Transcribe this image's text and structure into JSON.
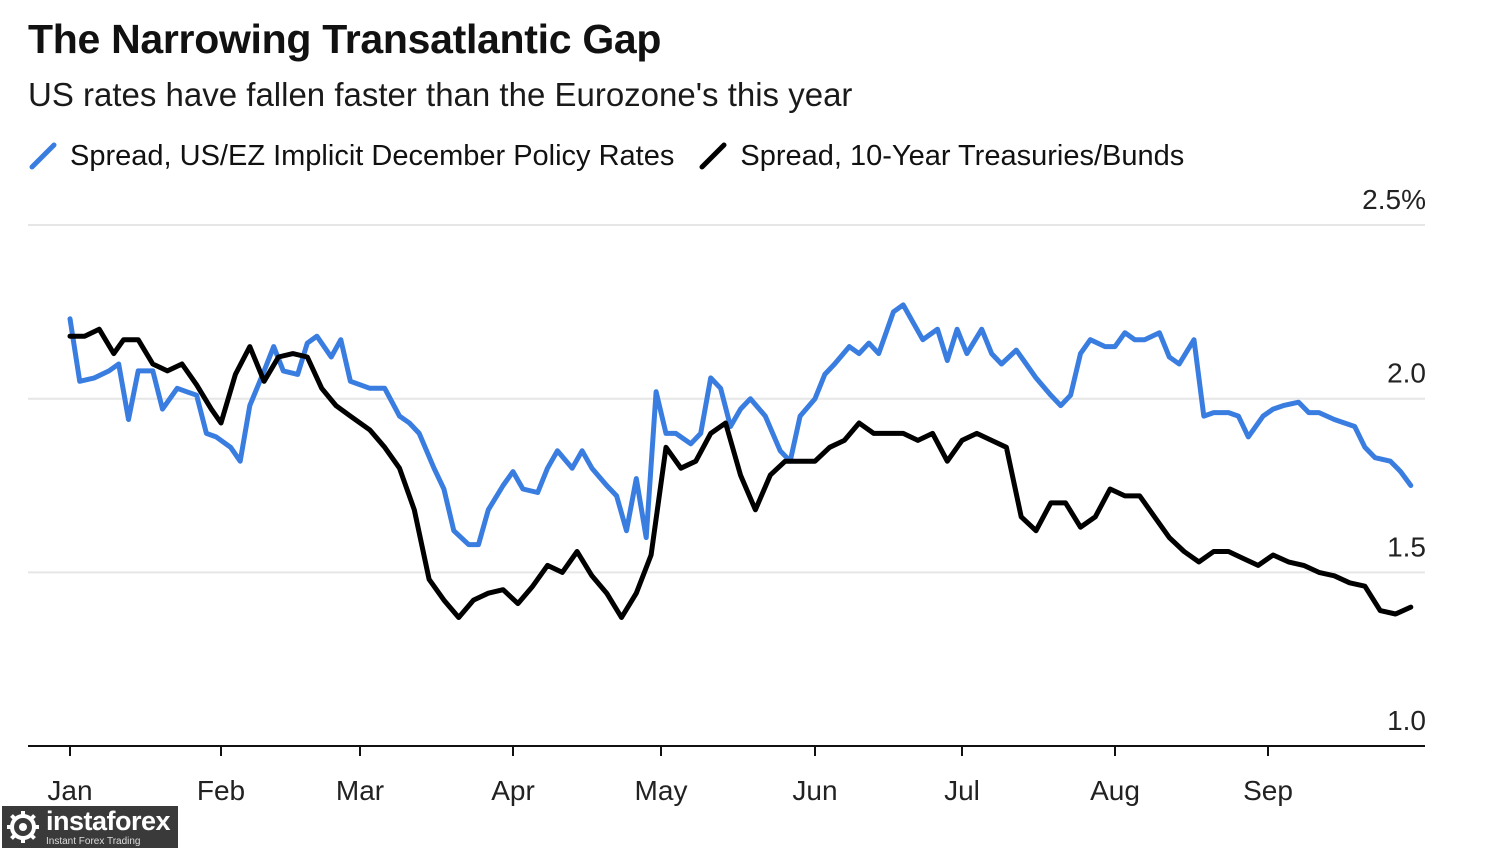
{
  "header": {
    "title": "The Narrowing Transatlantic Gap",
    "subtitle": "US rates have fallen faster than the Eurozone's this year"
  },
  "watermark": {
    "brand": "instaforex",
    "tagline": "Instant Forex Trading",
    "icon": "gear-logo-icon"
  },
  "colors": {
    "policy_series": "#3a7de0",
    "bund_series": "#000000",
    "grid": "#e6e6e6",
    "axis": "#111111"
  },
  "chart_data": {
    "type": "line",
    "title": "The Narrowing Transatlantic Gap",
    "subtitle": "US rates have fallen faster than the Eurozone's this year",
    "xlabel": "",
    "ylabel": "",
    "x_tick_labels": [
      "Jan",
      "Feb",
      "Mar",
      "Apr",
      "May",
      "Jun",
      "Jul",
      "Aug",
      "Sep"
    ],
    "y_tick_labels": [
      "2.5%",
      "2.0",
      "1.5",
      "1.0"
    ],
    "y_ticks": [
      2.5,
      2.0,
      1.5,
      1.0
    ],
    "ylim": [
      1.0,
      2.5
    ],
    "grid": "horizontal",
    "legend_position": "top-left",
    "series": [
      {
        "name": "Spread, US/EZ Implicit December Policy Rates",
        "color": "#3a7de0",
        "points": [
          [
            "Jan 1",
            2.23
          ],
          [
            "Jan 3",
            2.05
          ],
          [
            "Jan 6",
            2.06
          ],
          [
            "Jan 9",
            2.08
          ],
          [
            "Jan 11",
            2.1
          ],
          [
            "Jan 13",
            1.94
          ],
          [
            "Jan 15",
            2.08
          ],
          [
            "Jan 18",
            2.08
          ],
          [
            "Jan 20",
            1.97
          ],
          [
            "Jan 23",
            2.03
          ],
          [
            "Jan 25",
            2.02
          ],
          [
            "Jan 27",
            2.01
          ],
          [
            "Jan 29",
            1.9
          ],
          [
            "Jan 31",
            1.89
          ],
          [
            "Feb 3",
            1.86
          ],
          [
            "Feb 5",
            1.82
          ],
          [
            "Feb 7",
            1.98
          ],
          [
            "Feb 10",
            2.08
          ],
          [
            "Feb 12",
            2.15
          ],
          [
            "Feb 14",
            2.08
          ],
          [
            "Feb 17",
            2.07
          ],
          [
            "Feb 19",
            2.16
          ],
          [
            "Feb 21",
            2.18
          ],
          [
            "Feb 24",
            2.12
          ],
          [
            "Feb 26",
            2.17
          ],
          [
            "Feb 28",
            2.05
          ],
          [
            "Mar 3",
            2.03
          ],
          [
            "Mar 6",
            2.03
          ],
          [
            "Mar 9",
            1.95
          ],
          [
            "Mar 11",
            1.93
          ],
          [
            "Mar 13",
            1.9
          ],
          [
            "Mar 16",
            1.8
          ],
          [
            "Mar 18",
            1.74
          ],
          [
            "Mar 20",
            1.62
          ],
          [
            "Mar 23",
            1.58
          ],
          [
            "Mar 25",
            1.58
          ],
          [
            "Mar 27",
            1.68
          ],
          [
            "Mar 30",
            1.75
          ],
          [
            "Apr 1",
            1.79
          ],
          [
            "Apr 3",
            1.74
          ],
          [
            "Apr 6",
            1.73
          ],
          [
            "Apr 8",
            1.8
          ],
          [
            "Apr 10",
            1.85
          ],
          [
            "Apr 13",
            1.8
          ],
          [
            "Apr 15",
            1.85
          ],
          [
            "Apr 17",
            1.8
          ],
          [
            "Apr 20",
            1.75
          ],
          [
            "Apr 22",
            1.72
          ],
          [
            "Apr 24",
            1.62
          ],
          [
            "Apr 26",
            1.77
          ],
          [
            "Apr 28",
            1.6
          ],
          [
            "Apr 30",
            2.02
          ],
          [
            "May 2",
            1.9
          ],
          [
            "May 4",
            1.9
          ],
          [
            "May 7",
            1.87
          ],
          [
            "May 9",
            1.9
          ],
          [
            "May 11",
            2.06
          ],
          [
            "May 13",
            2.03
          ],
          [
            "May 15",
            1.92
          ],
          [
            "May 17",
            1.97
          ],
          [
            "May 19",
            2.0
          ],
          [
            "May 22",
            1.95
          ],
          [
            "May 25",
            1.85
          ],
          [
            "May 27",
            1.82
          ],
          [
            "May 29",
            1.95
          ],
          [
            "Jun 1",
            2.0
          ],
          [
            "Jun 3",
            2.07
          ],
          [
            "Jun 5",
            2.1
          ],
          [
            "Jun 8",
            2.15
          ],
          [
            "Jun 10",
            2.13
          ],
          [
            "Jun 12",
            2.16
          ],
          [
            "Jun 14",
            2.13
          ],
          [
            "Jun 17",
            2.25
          ],
          [
            "Jun 19",
            2.27
          ],
          [
            "Jun 21",
            2.22
          ],
          [
            "Jun 23",
            2.17
          ],
          [
            "Jun 26",
            2.2
          ],
          [
            "Jun 28",
            2.11
          ],
          [
            "Jun 30",
            2.2
          ],
          [
            "Jul 2",
            2.13
          ],
          [
            "Jul 5",
            2.2
          ],
          [
            "Jul 7",
            2.13
          ],
          [
            "Jul 9",
            2.1
          ],
          [
            "Jul 12",
            2.14
          ],
          [
            "Jul 14",
            2.1
          ],
          [
            "Jul 16",
            2.06
          ],
          [
            "Jul 19",
            2.01
          ],
          [
            "Jul 21",
            1.98
          ],
          [
            "Jul 23",
            2.01
          ],
          [
            "Jul 25",
            2.13
          ],
          [
            "Jul 27",
            2.17
          ],
          [
            "Jul 30",
            2.15
          ],
          [
            "Aug 1",
            2.15
          ],
          [
            "Aug 3",
            2.19
          ],
          [
            "Aug 5",
            2.17
          ],
          [
            "Aug 7",
            2.17
          ],
          [
            "Aug 10",
            2.19
          ],
          [
            "Aug 12",
            2.12
          ],
          [
            "Aug 14",
            2.1
          ],
          [
            "Aug 17",
            2.17
          ],
          [
            "Aug 19",
            1.95
          ],
          [
            "Aug 21",
            1.96
          ],
          [
            "Aug 24",
            1.96
          ],
          [
            "Aug 26",
            1.95
          ],
          [
            "Aug 28",
            1.89
          ],
          [
            "Aug 31",
            1.95
          ],
          [
            "Sep 2",
            1.97
          ],
          [
            "Sep 4",
            1.98
          ],
          [
            "Sep 7",
            1.99
          ],
          [
            "Sep 9",
            1.96
          ],
          [
            "Sep 11",
            1.96
          ],
          [
            "Sep 14",
            1.94
          ],
          [
            "Sep 16",
            1.93
          ],
          [
            "Sep 18",
            1.92
          ],
          [
            "Sep 20",
            1.86
          ],
          [
            "Sep 22",
            1.83
          ],
          [
            "Sep 25",
            1.82
          ],
          [
            "Sep 27",
            1.79
          ],
          [
            "Sep 29",
            1.75
          ]
        ]
      },
      {
        "name": "Spread, 10-Year Treasuries/Bunds",
        "color": "#000000",
        "points": [
          [
            "Jan 1",
            2.18
          ],
          [
            "Jan 4",
            2.18
          ],
          [
            "Jan 7",
            2.2
          ],
          [
            "Jan 10",
            2.13
          ],
          [
            "Jan 12",
            2.17
          ],
          [
            "Jan 15",
            2.17
          ],
          [
            "Jan 18",
            2.1
          ],
          [
            "Jan 21",
            2.08
          ],
          [
            "Jan 24",
            2.1
          ],
          [
            "Jan 27",
            2.04
          ],
          [
            "Jan 30",
            1.97
          ],
          [
            "Feb 1",
            1.93
          ],
          [
            "Feb 4",
            2.07
          ],
          [
            "Feb 7",
            2.15
          ],
          [
            "Feb 10",
            2.05
          ],
          [
            "Feb 13",
            2.12
          ],
          [
            "Feb 16",
            2.13
          ],
          [
            "Feb 19",
            2.12
          ],
          [
            "Feb 22",
            2.03
          ],
          [
            "Feb 25",
            1.98
          ],
          [
            "Feb 28",
            1.95
          ],
          [
            "Mar 3",
            1.91
          ],
          [
            "Mar 6",
            1.86
          ],
          [
            "Mar 9",
            1.8
          ],
          [
            "Mar 12",
            1.68
          ],
          [
            "Mar 15",
            1.48
          ],
          [
            "Mar 18",
            1.42
          ],
          [
            "Mar 21",
            1.37
          ],
          [
            "Mar 24",
            1.42
          ],
          [
            "Mar 27",
            1.44
          ],
          [
            "Mar 30",
            1.45
          ],
          [
            "Apr 2",
            1.41
          ],
          [
            "Apr 5",
            1.46
          ],
          [
            "Apr 8",
            1.52
          ],
          [
            "Apr 11",
            1.5
          ],
          [
            "Apr 14",
            1.56
          ],
          [
            "Apr 17",
            1.49
          ],
          [
            "Apr 20",
            1.44
          ],
          [
            "Apr 23",
            1.37
          ],
          [
            "Apr 26",
            1.44
          ],
          [
            "Apr 29",
            1.55
          ],
          [
            "May 2",
            1.86
          ],
          [
            "May 5",
            1.8
          ],
          [
            "May 8",
            1.82
          ],
          [
            "May 11",
            1.9
          ],
          [
            "May 14",
            1.93
          ],
          [
            "May 17",
            1.78
          ],
          [
            "May 20",
            1.68
          ],
          [
            "May 23",
            1.78
          ],
          [
            "May 26",
            1.82
          ],
          [
            "May 29",
            1.82
          ],
          [
            "Jun 1",
            1.82
          ],
          [
            "Jun 4",
            1.86
          ],
          [
            "Jun 7",
            1.88
          ],
          [
            "Jun 10",
            1.93
          ],
          [
            "Jun 13",
            1.9
          ],
          [
            "Jun 16",
            1.9
          ],
          [
            "Jun 19",
            1.9
          ],
          [
            "Jun 22",
            1.88
          ],
          [
            "Jun 25",
            1.9
          ],
          [
            "Jun 28",
            1.82
          ],
          [
            "Jul 1",
            1.88
          ],
          [
            "Jul 4",
            1.9
          ],
          [
            "Jul 7",
            1.88
          ],
          [
            "Jul 10",
            1.86
          ],
          [
            "Jul 13",
            1.66
          ],
          [
            "Jul 16",
            1.62
          ],
          [
            "Jul 19",
            1.7
          ],
          [
            "Jul 22",
            1.7
          ],
          [
            "Jul 25",
            1.63
          ],
          [
            "Jul 28",
            1.66
          ],
          [
            "Jul 31",
            1.74
          ],
          [
            "Aug 3",
            1.72
          ],
          [
            "Aug 6",
            1.72
          ],
          [
            "Aug 9",
            1.66
          ],
          [
            "Aug 12",
            1.6
          ],
          [
            "Aug 15",
            1.56
          ],
          [
            "Aug 18",
            1.53
          ],
          [
            "Aug 21",
            1.56
          ],
          [
            "Aug 24",
            1.56
          ],
          [
            "Aug 27",
            1.54
          ],
          [
            "Aug 30",
            1.52
          ],
          [
            "Sep 2",
            1.55
          ],
          [
            "Sep 5",
            1.53
          ],
          [
            "Sep 8",
            1.52
          ],
          [
            "Sep 11",
            1.5
          ],
          [
            "Sep 14",
            1.49
          ],
          [
            "Sep 17",
            1.47
          ],
          [
            "Sep 20",
            1.46
          ],
          [
            "Sep 23",
            1.39
          ],
          [
            "Sep 26",
            1.38
          ],
          [
            "Sep 29",
            1.4
          ]
        ]
      }
    ]
  }
}
